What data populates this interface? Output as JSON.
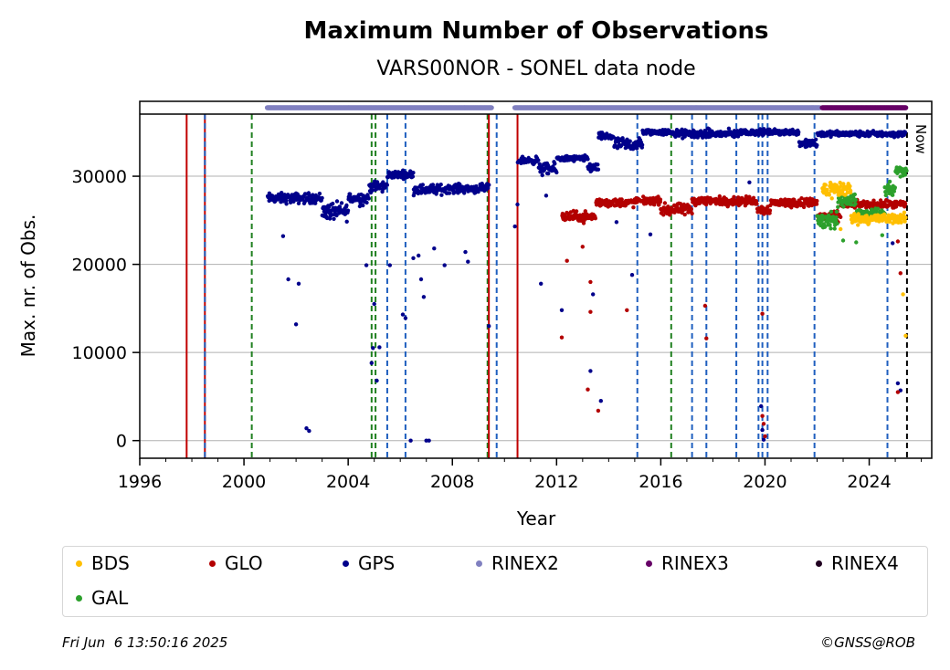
{
  "chart_data": {
    "type": "scatter",
    "title": "Maximum Number of Observations",
    "subtitle": "VARS00NOR - SONEL data node",
    "xlabel": "Year",
    "ylabel": "Max. nr. of Obs.",
    "xlim": [
      1996,
      2026.4
    ],
    "ylim": [
      -2000,
      38500
    ],
    "xticks": [
      1996,
      2000,
      2004,
      2008,
      2012,
      2016,
      2020,
      2024
    ],
    "yticks": [
      0,
      10000,
      20000,
      30000
    ],
    "grid": "horizontal",
    "now_label": "Now",
    "now_x": 2025.45,
    "legend_position": "below",
    "series": [
      {
        "name": "BDS",
        "color": "#ffbf00",
        "segments": [
          [
            2022.2,
            2023.3,
            28500,
            1200
          ],
          [
            2023.3,
            2025.4,
            25200,
            700
          ]
        ],
        "outliers": [
          [
            2025.3,
            16600
          ],
          [
            2025.4,
            11900
          ],
          [
            2022.9,
            24000
          ]
        ]
      },
      {
        "name": "GLO",
        "color": "#b30000",
        "segments": [
          [
            2012.2,
            2013.5,
            25400,
            700
          ],
          [
            2013.5,
            2015.0,
            27000,
            600
          ],
          [
            2015.0,
            2016.0,
            27200,
            500
          ],
          [
            2016.0,
            2017.2,
            26200,
            800
          ],
          [
            2017.2,
            2019.7,
            27200,
            600
          ],
          [
            2019.7,
            2020.2,
            26200,
            600
          ],
          [
            2020.2,
            2022.0,
            27000,
            600
          ],
          [
            2022.0,
            2022.9,
            25400,
            700
          ],
          [
            2022.9,
            2025.4,
            26800,
            500
          ]
        ],
        "outliers": [
          [
            2012.2,
            11700
          ],
          [
            2012.4,
            20400
          ],
          [
            2013.2,
            5800
          ],
          [
            2013.3,
            14600
          ],
          [
            2013.3,
            18000
          ],
          [
            2013.6,
            3400
          ],
          [
            2014.7,
            14800
          ],
          [
            2017.7,
            15300
          ],
          [
            2017.75,
            11600
          ],
          [
            2019.9,
            14400
          ],
          [
            2019.9,
            2800
          ],
          [
            2019.95,
            1900
          ],
          [
            2020.0,
            500
          ],
          [
            2025.1,
            5500
          ],
          [
            2025.2,
            19000
          ],
          [
            2025.1,
            22600
          ],
          [
            2013.0,
            22000
          ]
        ]
      },
      {
        "name": "GPS",
        "color": "#00008b",
        "segments": [
          [
            2000.9,
            2003.0,
            27500,
            700
          ],
          [
            2003.0,
            2004.0,
            26000,
            1200
          ],
          [
            2004.0,
            2004.8,
            27500,
            900
          ],
          [
            2004.8,
            2005.5,
            28800,
            800
          ],
          [
            2005.5,
            2006.5,
            30200,
            500
          ],
          [
            2006.5,
            2007.7,
            28500,
            700
          ],
          [
            2007.7,
            2009.4,
            28600,
            600
          ],
          [
            2010.5,
            2011.3,
            31800,
            500
          ],
          [
            2011.3,
            2012.0,
            30800,
            800
          ],
          [
            2012.0,
            2013.2,
            32000,
            400
          ],
          [
            2013.2,
            2013.6,
            31000,
            700
          ],
          [
            2013.6,
            2014.2,
            34500,
            500
          ],
          [
            2014.2,
            2015.3,
            33600,
            900
          ],
          [
            2015.3,
            2016.5,
            35000,
            400
          ],
          [
            2016.5,
            2019.0,
            34800,
            600
          ],
          [
            2019.0,
            2021.3,
            35000,
            400
          ],
          [
            2021.3,
            2022.0,
            33800,
            700
          ],
          [
            2022.0,
            2025.4,
            34800,
            400
          ]
        ],
        "outliers": [
          [
            2001.5,
            23200
          ],
          [
            2001.7,
            18300
          ],
          [
            2002.0,
            13200
          ],
          [
            2002.1,
            17800
          ],
          [
            2002.4,
            1400
          ],
          [
            2002.5,
            1100
          ],
          [
            2004.7,
            19900
          ],
          [
            2004.9,
            8800
          ],
          [
            2004.95,
            10500
          ],
          [
            2005.0,
            15500
          ],
          [
            2005.1,
            6800
          ],
          [
            2005.2,
            10600
          ],
          [
            2005.6,
            19900
          ],
          [
            2006.1,
            14300
          ],
          [
            2006.2,
            13900
          ],
          [
            2006.4,
            0
          ],
          [
            2006.5,
            20700
          ],
          [
            2006.7,
            21000
          ],
          [
            2006.8,
            18300
          ],
          [
            2006.9,
            16300
          ],
          [
            2007.0,
            0
          ],
          [
            2007.1,
            0
          ],
          [
            2007.3,
            21800
          ],
          [
            2007.7,
            19900
          ],
          [
            2008.5,
            21400
          ],
          [
            2008.6,
            20300
          ],
          [
            2009.4,
            13000
          ],
          [
            2010.4,
            24300
          ],
          [
            2010.5,
            26800
          ],
          [
            2011.4,
            17800
          ],
          [
            2011.6,
            27800
          ],
          [
            2012.2,
            14800
          ],
          [
            2013.3,
            7900
          ],
          [
            2013.4,
            16600
          ],
          [
            2013.7,
            4500
          ],
          [
            2014.3,
            24800
          ],
          [
            2014.9,
            18800
          ],
          [
            2015.6,
            23400
          ],
          [
            2019.4,
            29300
          ],
          [
            2019.85,
            3900
          ],
          [
            2019.9,
            1200
          ],
          [
            2019.95,
            100
          ],
          [
            2025.1,
            6500
          ],
          [
            2025.2,
            5700
          ],
          [
            2024.9,
            22400
          ]
        ]
      },
      {
        "name": "RINEX2",
        "color": "#8080c0",
        "ranges": [
          [
            2000.9,
            2009.5
          ],
          [
            2010.4,
            2022.1
          ]
        ]
      },
      {
        "name": "RINEX3",
        "color": "#660066",
        "ranges": [
          [
            2022.2,
            2025.4
          ]
        ]
      },
      {
        "name": "RINEX4",
        "color": "#200020",
        "ranges": []
      },
      {
        "name": "GAL",
        "color": "#2ca02c",
        "segments": [
          [
            2022.0,
            2022.8,
            25000,
            1600
          ],
          [
            2022.8,
            2023.5,
            27300,
            800
          ],
          [
            2023.5,
            2024.6,
            25800,
            600
          ],
          [
            2024.6,
            2025.0,
            28500,
            1200
          ],
          [
            2025.0,
            2025.45,
            30500,
            800
          ]
        ],
        "outliers": [
          [
            2023.0,
            22700
          ],
          [
            2023.5,
            22500
          ],
          [
            2024.5,
            23300
          ]
        ]
      }
    ],
    "vlines": [
      {
        "x": 1997.8,
        "color": "#c00000",
        "style": "solid"
      },
      {
        "x": 1998.5,
        "color": "#c00000",
        "style": "solid"
      },
      {
        "x": 1998.5,
        "color": "#1f5fbf",
        "style": "dashed"
      },
      {
        "x": 2000.3,
        "color": "#208020",
        "style": "dashed"
      },
      {
        "x": 2004.9,
        "color": "#208020",
        "style": "dashed"
      },
      {
        "x": 2005.05,
        "color": "#208020",
        "style": "dashed"
      },
      {
        "x": 2005.5,
        "color": "#1f5fbf",
        "style": "dashed"
      },
      {
        "x": 2006.2,
        "color": "#1f5fbf",
        "style": "dashed"
      },
      {
        "x": 2009.35,
        "color": "#208020",
        "style": "dashed"
      },
      {
        "x": 2009.4,
        "color": "#c00000",
        "style": "solid"
      },
      {
        "x": 2009.7,
        "color": "#1f5fbf",
        "style": "dashed"
      },
      {
        "x": 2010.5,
        "color": "#c00000",
        "style": "solid"
      },
      {
        "x": 2015.1,
        "color": "#1f5fbf",
        "style": "dashed"
      },
      {
        "x": 2016.4,
        "color": "#208020",
        "style": "dashed"
      },
      {
        "x": 2017.2,
        "color": "#1f5fbf",
        "style": "dashed"
      },
      {
        "x": 2017.75,
        "color": "#1f5fbf",
        "style": "dashed"
      },
      {
        "x": 2018.9,
        "color": "#1f5fbf",
        "style": "dashed"
      },
      {
        "x": 2019.75,
        "color": "#1f5fbf",
        "style": "dashed"
      },
      {
        "x": 2019.9,
        "color": "#1f5fbf",
        "style": "dashed"
      },
      {
        "x": 2020.1,
        "color": "#1f5fbf",
        "style": "dashed"
      },
      {
        "x": 2021.9,
        "color": "#1f5fbf",
        "style": "dashed"
      },
      {
        "x": 2024.7,
        "color": "#1f5fbf",
        "style": "dashed"
      },
      {
        "x": 2025.45,
        "color": "#000000",
        "style": "dashed"
      }
    ]
  },
  "legend": {
    "items": [
      {
        "name": "BDS",
        "color": "#ffbf00"
      },
      {
        "name": "GLO",
        "color": "#b30000"
      },
      {
        "name": "GPS",
        "color": "#00008b"
      },
      {
        "name": "RINEX2",
        "color": "#8080c0"
      },
      {
        "name": "RINEX3",
        "color": "#660066"
      },
      {
        "name": "RINEX4",
        "color": "#200020"
      },
      {
        "name": "GAL",
        "color": "#2ca02c"
      }
    ]
  },
  "footer": {
    "timestamp": "Fri Jun  6 13:50:16 2025",
    "copyright": "©GNSS@ROB"
  }
}
